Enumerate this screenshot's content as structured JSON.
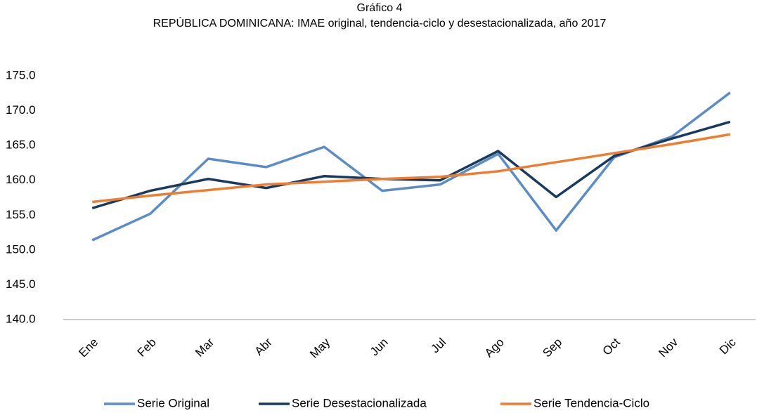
{
  "chart_data": {
    "type": "line",
    "title": "Gráfico 4",
    "subtitle": "REPÚBLICA DOMINICANA: IMAE original, tendencia-ciclo y desestacionalizada, año 2017",
    "categories": [
      "Ene",
      "Feb",
      "Mar",
      "Abr",
      "May",
      "Jun",
      "Jul",
      "Ago",
      "Sep",
      "Oct",
      "Nov",
      "Dic"
    ],
    "series": [
      {
        "name": "Serie Original",
        "color": "#5b8cc6",
        "values": [
          151.4,
          155.2,
          163.1,
          161.9,
          164.8,
          158.5,
          159.4,
          163.8,
          152.8,
          163.3,
          166.3,
          172.6
        ]
      },
      {
        "name": "Serie Desestacionalizada",
        "color": "#173a5e",
        "values": [
          156.0,
          158.5,
          160.2,
          158.9,
          160.6,
          160.2,
          160.0,
          164.2,
          157.6,
          163.5,
          166.0,
          168.4
        ]
      },
      {
        "name": "Serie Tendencia-Ciclo",
        "color": "#ed7d31",
        "values": [
          156.9,
          157.8,
          158.6,
          159.4,
          159.8,
          160.2,
          160.5,
          161.3,
          162.6,
          163.9,
          165.2,
          166.6
        ]
      }
    ],
    "ylim": [
      140,
      175
    ],
    "yticks": [
      {
        "value": 140,
        "label": "140.0"
      },
      {
        "value": 145,
        "label": "145.0"
      },
      {
        "value": 150,
        "label": "150.0"
      },
      {
        "value": 155,
        "label": "155.0"
      },
      {
        "value": 160,
        "label": "160.0"
      },
      {
        "value": 165,
        "label": "165.0"
      },
      {
        "value": 170,
        "label": "170.0"
      },
      {
        "value": 175,
        "label": "175.0"
      }
    ],
    "legend": "bottom"
  }
}
